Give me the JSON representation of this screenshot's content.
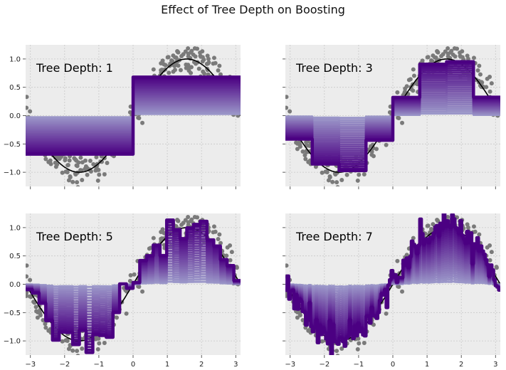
{
  "figure": {
    "title": "Effect of Tree Depth on Boosting"
  },
  "chart_data": [
    {
      "type": "line",
      "annotation": "Tree Depth: 1",
      "xlim": [
        -3.14,
        3.14
      ],
      "ylim": [
        -1.25,
        1.25
      ],
      "xticks": [
        -3,
        -2,
        -1,
        0,
        1,
        2,
        3
      ],
      "yticks": [
        -1.0,
        -0.5,
        0.0,
        0.5,
        1.0
      ],
      "ytick_labels": [
        "−1.0",
        "−0.5",
        "0.0",
        "0.5",
        "1.0"
      ],
      "xtick_labels": [
        "−3",
        "−2",
        "−1",
        "0",
        "1",
        "2",
        "3"
      ],
      "show_xticklabels": false,
      "show_yticklabels": true,
      "grid": true,
      "series": [
        {
          "kind": "scatter",
          "color": "#7a7a7a",
          "function": "sin(x) + noise",
          "noise_sd": 0.15,
          "n_points": 300
        },
        {
          "kind": "line",
          "color": "#000000",
          "function": "sin(x)"
        },
        {
          "kind": "staircase_family",
          "color_start": "#9b97c9",
          "color_end": "#4b0082",
          "levels": [
            0.04,
            0.08,
            0.12,
            0.16,
            0.2,
            0.24,
            0.28,
            0.32,
            0.36,
            0.4,
            0.44,
            0.48,
            0.52,
            0.56,
            0.6,
            0.64,
            0.68,
            0.72,
            0.76,
            0.8,
            0.84,
            0.88,
            0.92,
            0.96,
            1.0
          ]
        }
      ]
    },
    {
      "type": "line",
      "annotation": "Tree Depth: 3",
      "xlim": [
        -3.14,
        3.14
      ],
      "ylim": [
        -1.25,
        1.25
      ],
      "xticks": [
        -3,
        -2,
        -1,
        0,
        1,
        2,
        3
      ],
      "yticks": [
        -1.0,
        -0.5,
        0.0,
        0.5,
        1.0
      ],
      "show_xticklabels": false,
      "show_yticklabels": false,
      "grid": true,
      "series": [
        {
          "kind": "scatter",
          "color": "#7a7a7a",
          "function": "sin(x) + noise",
          "noise_sd": 0.15,
          "n_points": 300
        },
        {
          "kind": "line",
          "color": "#000000",
          "function": "sin(x)"
        },
        {
          "kind": "staircase_family",
          "color_start": "#9b97c9",
          "color_end": "#4b0082",
          "levels": [
            0.04,
            0.08,
            0.12,
            0.16,
            0.2,
            0.24,
            0.28,
            0.32,
            0.36,
            0.4,
            0.44,
            0.48,
            0.52,
            0.56,
            0.6,
            0.64,
            0.68,
            0.72,
            0.76,
            0.8,
            0.84,
            0.88,
            0.92,
            0.96,
            1.0
          ]
        }
      ]
    },
    {
      "type": "line",
      "annotation": "Tree Depth: 5",
      "xlim": [
        -3.14,
        3.14
      ],
      "ylim": [
        -1.25,
        1.25
      ],
      "xticks": [
        -3,
        -2,
        -1,
        0,
        1,
        2,
        3
      ],
      "yticks": [
        -1.0,
        -0.5,
        0.0,
        0.5,
        1.0
      ],
      "ytick_labels": [
        "−1.0",
        "−0.5",
        "0.0",
        "0.5",
        "1.0"
      ],
      "xtick_labels": [
        "−3",
        "−2",
        "−1",
        "0",
        "1",
        "2",
        "3"
      ],
      "show_xticklabels": true,
      "show_yticklabels": true,
      "grid": true,
      "series": [
        {
          "kind": "scatter",
          "color": "#7a7a7a",
          "function": "sin(x) + noise",
          "noise_sd": 0.15,
          "n_points": 300
        },
        {
          "kind": "line",
          "color": "#000000",
          "function": "sin(x)"
        },
        {
          "kind": "staircase_family",
          "color_start": "#9b97c9",
          "color_end": "#4b0082",
          "levels": [
            0.04,
            0.08,
            0.12,
            0.16,
            0.2,
            0.24,
            0.28,
            0.32,
            0.36,
            0.4,
            0.44,
            0.48,
            0.52,
            0.56,
            0.6,
            0.64,
            0.68,
            0.72,
            0.76,
            0.8,
            0.84,
            0.88,
            0.92,
            0.96,
            1.0
          ]
        }
      ]
    },
    {
      "type": "line",
      "annotation": "Tree Depth: 7",
      "xlim": [
        -3.14,
        3.14
      ],
      "ylim": [
        -1.25,
        1.25
      ],
      "xticks": [
        -3,
        -2,
        -1,
        0,
        1,
        2,
        3
      ],
      "yticks": [
        -1.0,
        -0.5,
        0.0,
        0.5,
        1.0
      ],
      "xtick_labels": [
        "−3",
        "−2",
        "−1",
        "0",
        "1",
        "2",
        "3"
      ],
      "show_xticklabels": true,
      "show_yticklabels": false,
      "grid": true,
      "series": [
        {
          "kind": "scatter",
          "color": "#7a7a7a",
          "function": "sin(x) + noise",
          "noise_sd": 0.15,
          "n_points": 300
        },
        {
          "kind": "line",
          "color": "#000000",
          "function": "sin(x)"
        },
        {
          "kind": "staircase_family",
          "color_start": "#9b97c9",
          "color_end": "#4b0082",
          "levels": [
            0.04,
            0.08,
            0.12,
            0.16,
            0.2,
            0.24,
            0.28,
            0.32,
            0.36,
            0.4,
            0.44,
            0.48,
            0.52,
            0.56,
            0.6,
            0.64,
            0.68,
            0.72,
            0.76,
            0.8,
            0.84,
            0.88,
            0.92,
            0.96,
            1.0
          ]
        }
      ]
    }
  ]
}
